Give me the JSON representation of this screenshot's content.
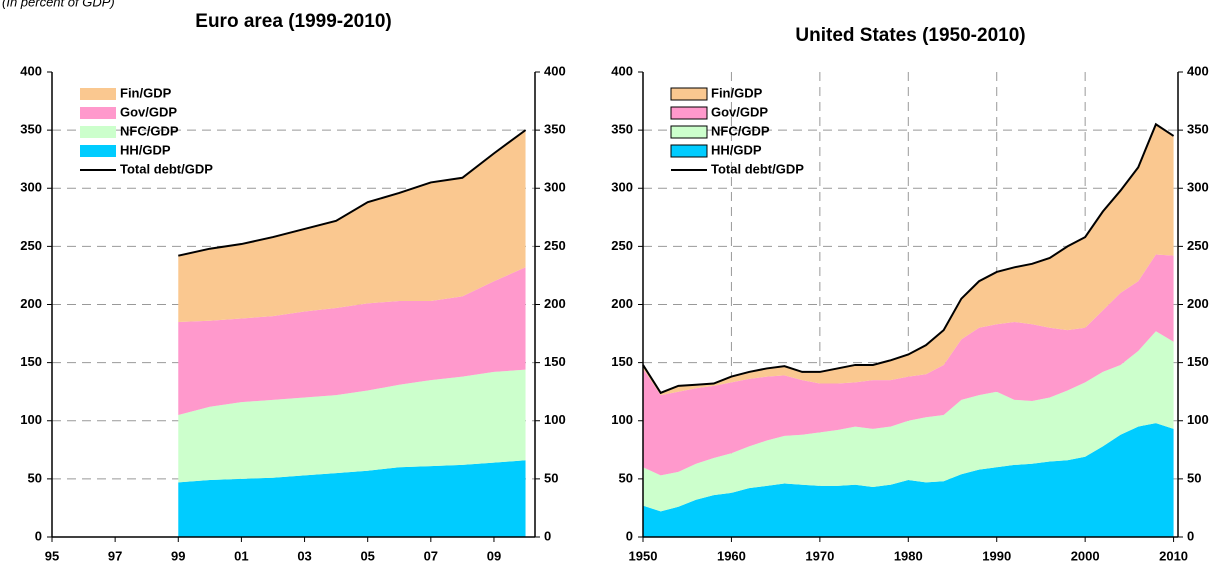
{
  "chart_data": [
    {
      "type": "stacked_area",
      "title": "Euro area (1999-2010)",
      "subtitle": "(In percent of GDP)",
      "x": [
        1999,
        2000,
        2001,
        2002,
        2003,
        2004,
        2005,
        2006,
        2007,
        2008,
        2009,
        2010
      ],
      "series": [
        {
          "name": "Fin/GDP",
          "type": "area",
          "color": "#fac890",
          "values": [
            57,
            62,
            64,
            68,
            71,
            75,
            87,
            93,
            102,
            102,
            110,
            118
          ]
        },
        {
          "name": "Gov/GDP",
          "type": "area",
          "color": "#ff99cc",
          "values": [
            80,
            74,
            72,
            72,
            74,
            75,
            75,
            72,
            68,
            69,
            78,
            88
          ]
        },
        {
          "name": "NFC/GDP",
          "type": "area",
          "color": "#ccffcc",
          "values": [
            58,
            63,
            66,
            67,
            67,
            67,
            69,
            71,
            74,
            76,
            78,
            78
          ]
        },
        {
          "name": "HH/GDP",
          "type": "area",
          "color": "#00ccff",
          "values": [
            47,
            49,
            50,
            51,
            53,
            55,
            57,
            60,
            61,
            62,
            64,
            66
          ]
        },
        {
          "name": "Total debt/GDP",
          "type": "line",
          "color": "#000000",
          "values": [
            242,
            248,
            252,
            258,
            265,
            272,
            288,
            296,
            305,
            309,
            330,
            350
          ]
        }
      ],
      "xlim": [
        1995,
        2010.3
      ],
      "xticks": [
        {
          "value": 1995,
          "label": "95"
        },
        {
          "value": 1997,
          "label": "97"
        },
        {
          "value": 1999,
          "label": "99"
        },
        {
          "value": 2001,
          "label": "01"
        },
        {
          "value": 2003,
          "label": "03"
        },
        {
          "value": 2005,
          "label": "05"
        },
        {
          "value": 2007,
          "label": "07"
        },
        {
          "value": 2009,
          "label": "09"
        }
      ],
      "ylim": [
        0,
        400
      ],
      "yticks": [
        0,
        50,
        100,
        150,
        200,
        250,
        300,
        350,
        400
      ],
      "xgrid": false,
      "ygrid": true,
      "legend": "top-left"
    },
    {
      "type": "stacked_area",
      "title": "United States (1950-2010)",
      "x": [
        1950,
        1952,
        1954,
        1956,
        1958,
        1960,
        1962,
        1964,
        1966,
        1968,
        1970,
        1972,
        1974,
        1976,
        1978,
        1980,
        1982,
        1984,
        1986,
        1988,
        1990,
        1992,
        1994,
        1996,
        1998,
        2000,
        2002,
        2004,
        2006,
        2008,
        2010
      ],
      "series": [
        {
          "name": "Fin/GDP",
          "type": "area",
          "color": "#fac890",
          "values": [
            3,
            2,
            5,
            3,
            2,
            5,
            6,
            7,
            8,
            7,
            10,
            13,
            15,
            13,
            17,
            19,
            25,
            30,
            35,
            40,
            45,
            47,
            52,
            60,
            72,
            78,
            85,
            88,
            98,
            112,
            103
          ]
        },
        {
          "name": "Gov/GDP",
          "type": "area",
          "color": "#ff99cc",
          "values": [
            85,
            69,
            69,
            65,
            62,
            61,
            58,
            55,
            52,
            47,
            42,
            40,
            38,
            42,
            40,
            38,
            37,
            43,
            52,
            58,
            58,
            67,
            66,
            60,
            52,
            47,
            53,
            62,
            60,
            66,
            74
          ]
        },
        {
          "name": "NFC/GDP",
          "type": "area",
          "color": "#ccffcc",
          "values": [
            33,
            31,
            30,
            31,
            32,
            34,
            36,
            39,
            41,
            43,
            46,
            48,
            50,
            50,
            50,
            51,
            56,
            57,
            64,
            64,
            65,
            56,
            54,
            55,
            60,
            64,
            64,
            60,
            65,
            79,
            75
          ]
        },
        {
          "name": "HH/GDP",
          "type": "area",
          "color": "#00ccff",
          "values": [
            27,
            22,
            26,
            32,
            36,
            38,
            42,
            44,
            46,
            45,
            44,
            44,
            45,
            43,
            45,
            49,
            47,
            48,
            54,
            58,
            60,
            62,
            63,
            65,
            66,
            69,
            78,
            88,
            95,
            98,
            93
          ]
        },
        {
          "name": "Total debt/GDP",
          "type": "line",
          "color": "#000000",
          "values": [
            148,
            124,
            130,
            131,
            132,
            138,
            142,
            145,
            147,
            142,
            142,
            145,
            148,
            148,
            152,
            157,
            165,
            178,
            205,
            220,
            228,
            232,
            235,
            240,
            250,
            258,
            280,
            298,
            318,
            355,
            345
          ]
        }
      ],
      "xlim": [
        1950,
        2010.5
      ],
      "xticks": [
        1950,
        1960,
        1970,
        1980,
        1990,
        2000,
        2010
      ],
      "ylim": [
        0,
        400
      ],
      "yticks": [
        0,
        50,
        100,
        150,
        200,
        250,
        300,
        350,
        400
      ],
      "xgrid": true,
      "ygrid": true,
      "legend": "top-left"
    }
  ]
}
